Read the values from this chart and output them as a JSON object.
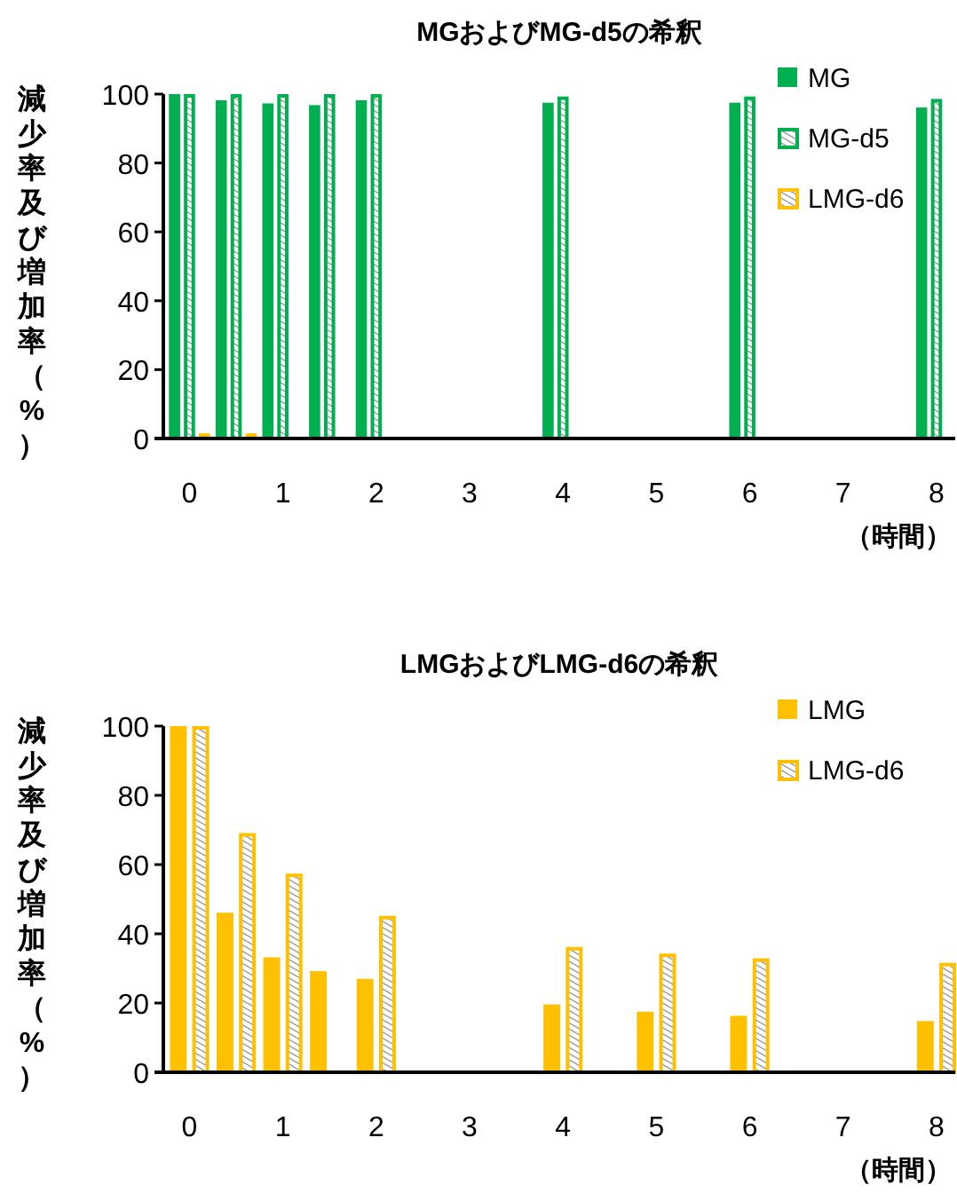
{
  "chart_data": [
    {
      "type": "bar",
      "title": "MGおよびMG-d5の希釈",
      "ylabel": "減少率及び増加率（%）",
      "xlabel": "（時間）",
      "x": [
        0,
        0.5,
        1,
        1.5,
        2,
        4,
        6,
        8
      ],
      "series": [
        {
          "name": "MG",
          "color": "#00b050",
          "values": [
            100,
            98.2,
            97.3,
            96.8,
            98.2,
            97.5,
            97.5,
            96.1
          ]
        },
        {
          "name": "MG-d5",
          "color": "#00b050",
          "values": [
            100,
            100,
            100,
            100,
            100,
            99.3,
            99.3,
            98.6
          ]
        },
        {
          "name": "LMG-d6",
          "color": "#ffc000",
          "values": [
            1.5,
            1.5,
            null,
            null,
            null,
            null,
            null,
            null
          ]
        }
      ],
      "xlim": [
        -0.28,
        8.2
      ],
      "xticks": [
        0,
        1,
        2,
        3,
        4,
        5,
        6,
        7,
        8
      ],
      "ylim": [
        0,
        100
      ],
      "yticks": [
        0,
        20,
        40,
        60,
        80,
        100
      ],
      "legend": "top right"
    },
    {
      "type": "bar",
      "title": "LMGおよびLMG-d6の希釈",
      "ylabel": "減少率及び増加率（%）",
      "xlabel": "（時間）",
      "x": [
        0,
        0.5,
        1,
        1.5,
        2,
        4,
        5,
        6,
        8
      ],
      "series": [
        {
          "name": "LMG",
          "color": "#ffc000",
          "values": [
            100,
            46.1,
            33.2,
            29.2,
            27.0,
            19.6,
            17.5,
            16.3,
            14.8
          ]
        },
        {
          "name": "LMG-d6",
          "color": "#ffc000",
          "values": [
            100,
            69.1,
            57.4,
            null,
            45.2,
            36.2,
            34.3,
            32.9,
            31.6
          ]
        }
      ],
      "xlim": [
        -0.28,
        8.2
      ],
      "xticks": [
        0,
        1,
        2,
        3,
        4,
        5,
        6,
        7,
        8
      ],
      "ylim": [
        0,
        100
      ],
      "yticks": [
        0,
        20,
        40,
        60,
        80,
        100
      ],
      "legend": "top right"
    }
  ]
}
